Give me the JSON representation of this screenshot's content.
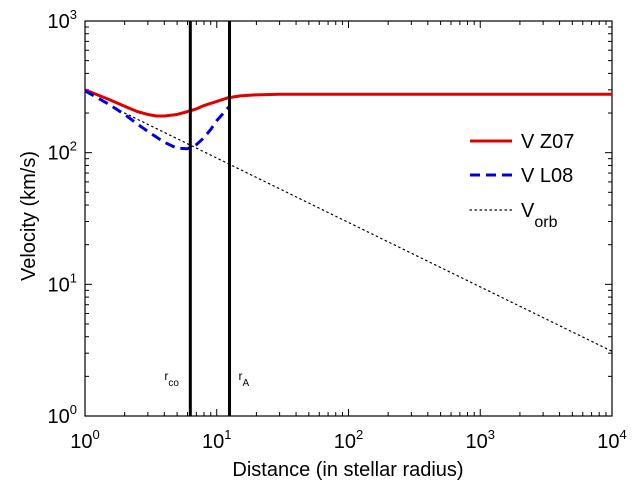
{
  "chart_data": {
    "type": "line",
    "xlabel": "Distance (in stellar radius)",
    "ylabel": "Velocity (km/s)",
    "xscale": "log",
    "yscale": "log",
    "xlim": [
      1,
      10000
    ],
    "ylim": [
      1,
      1000
    ],
    "grid": false,
    "legend_position": "right",
    "x_ticks": [
      {
        "base": "10",
        "exp": "0",
        "value": 1
      },
      {
        "base": "10",
        "exp": "1",
        "value": 10
      },
      {
        "base": "10",
        "exp": "2",
        "value": 100
      },
      {
        "base": "10",
        "exp": "3",
        "value": 1000
      },
      {
        "base": "10",
        "exp": "4",
        "value": 10000
      }
    ],
    "y_ticks": [
      {
        "base": "10",
        "exp": "0",
        "value": 1
      },
      {
        "base": "10",
        "exp": "1",
        "value": 10
      },
      {
        "base": "10",
        "exp": "2",
        "value": 100
      },
      {
        "base": "10",
        "exp": "3",
        "value": 1000
      }
    ],
    "series": [
      {
        "name": "V Z07",
        "label_main": "V Z07",
        "label_sub": "",
        "color": "#e00000",
        "style": "solid",
        "x": [
          1,
          1.5,
          2,
          2.5,
          3,
          3.5,
          4,
          5,
          6,
          7,
          8,
          10,
          12,
          15,
          20,
          30,
          50,
          100,
          1000,
          10000
        ],
        "y": [
          300,
          255,
          225,
          205,
          195,
          190,
          190,
          195,
          205,
          215,
          228,
          245,
          260,
          270,
          275,
          278,
          278,
          278,
          278,
          278
        ]
      },
      {
        "name": "V L08",
        "label_main": "V L08",
        "label_sub": "",
        "color": "#0000e0",
        "style": "dashed",
        "x": [
          1,
          1.5,
          2,
          2.5,
          3,
          4,
          5,
          6,
          7,
          8,
          9,
          10,
          11.5,
          12.5
        ],
        "y": [
          295,
          235,
          195,
          165,
          145,
          120,
          108,
          107,
          115,
          130,
          150,
          175,
          205,
          225
        ]
      },
      {
        "name": "Vorb",
        "label_main": "V",
        "label_sub": "orb",
        "color": "#000000",
        "style": "dotted",
        "x": [
          2,
          10000
        ],
        "y": [
          200,
          3.1
        ]
      }
    ],
    "vlines": [
      {
        "x": 6.3,
        "label_main": "r",
        "label_sub": "co",
        "y_label": 25
      },
      {
        "x": 12.5,
        "label_main": "r",
        "label_sub": "A",
        "y_label": 25
      }
    ]
  }
}
